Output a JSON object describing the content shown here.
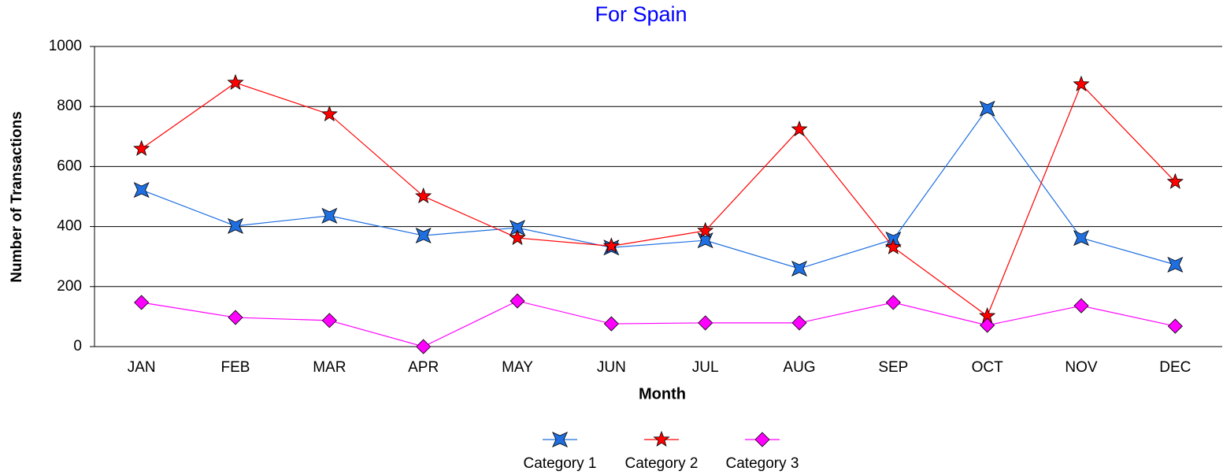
{
  "chart_data": {
    "type": "line",
    "title": "For Spain",
    "x_label": "Month",
    "y_label": "Number of Transactions",
    "categories": [
      "JAN",
      "FEB",
      "MAR",
      "APR",
      "MAY",
      "JUN",
      "JUL",
      "AUG",
      "SEP",
      "OCT",
      "NOV",
      "DEC"
    ],
    "series": [
      {
        "name": "Category 1",
        "color": "#1f6fe0",
        "marker": "star4",
        "values": [
          522,
          402,
          436,
          370,
          396,
          330,
          354,
          260,
          357,
          793,
          362,
          273
        ]
      },
      {
        "name": "Category 2",
        "color": "#ff0000",
        "marker": "star5",
        "values": [
          659,
          879,
          774,
          501,
          362,
          335,
          386,
          724,
          331,
          102,
          874,
          549
        ]
      },
      {
        "name": "Category 3",
        "color": "#ff00ff",
        "marker": "diamond",
        "values": [
          147,
          97,
          87,
          0,
          152,
          76,
          79,
          79,
          147,
          71,
          136,
          68
        ]
      }
    ],
    "ylim": [
      0,
      1000
    ],
    "yticks": [
      0,
      200,
      400,
      600,
      800,
      1000
    ],
    "grid": true,
    "legend": "bottom"
  }
}
